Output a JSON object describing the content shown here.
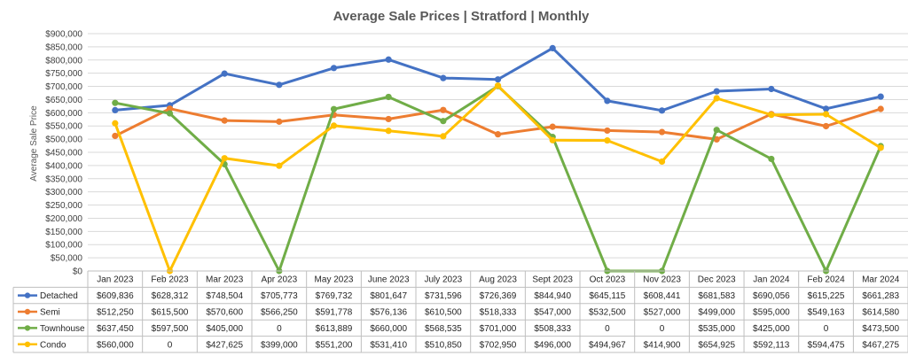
{
  "chart_data": {
    "type": "line",
    "title": "Average Sale Prices | Stratford |  Monthly",
    "ylabel": "Average Sale Price",
    "xlabel": "",
    "ylim": [
      0,
      900000
    ],
    "y_tick_labels": [
      "$0",
      "$50,000",
      "$100,000",
      "$150,000",
      "$200,000",
      "$250,000",
      "$300,000",
      "$350,000",
      "$400,000",
      "$450,000",
      "$500,000",
      "$550,000",
      "$600,000",
      "$650,000",
      "$700,000",
      "$750,000",
      "$800,000",
      "$850,000",
      "$900,000"
    ],
    "grid": true,
    "legend": "data-table",
    "categories": [
      "Jan 2023",
      "Feb 2023",
      "Mar 2023",
      "Apr 2023",
      "May 2023",
      "June 2023",
      "July 2023",
      "Aug 2023",
      "Sept 2023",
      "Oct 2023",
      "Nov 2023",
      "Dec 2023",
      "Jan 2024",
      "Feb 2024",
      "Mar 2024"
    ],
    "series": [
      {
        "name": "Detached",
        "color": "#4472c4",
        "values": [
          609836,
          628312,
          748504,
          705773,
          769732,
          801647,
          731596,
          726369,
          844940,
          645115,
          608441,
          681583,
          690056,
          615225,
          661283
        ],
        "labels": [
          "$609,836",
          "$628,312",
          "$748,504",
          "$705,773",
          "$769,732",
          "$801,647",
          "$731,596",
          "$726,369",
          "$844,940",
          "$645,115",
          "$608,441",
          "$681,583",
          "$690,056",
          "$615,225",
          "$661,283"
        ]
      },
      {
        "name": "Semi",
        "color": "#ed7d31",
        "values": [
          512250,
          615500,
          570600,
          566250,
          591778,
          576136,
          610500,
          518333,
          547000,
          532500,
          527000,
          499000,
          595000,
          549163,
          614580
        ],
        "labels": [
          "$512,250",
          "$615,500",
          "$570,600",
          "$566,250",
          "$591,778",
          "$576,136",
          "$610,500",
          "$518,333",
          "$547,000",
          "$532,500",
          "$527,000",
          "$499,000",
          "$595,000",
          "$549,163",
          "$614,580"
        ]
      },
      {
        "name": "Townhouse",
        "color": "#70ad47",
        "values": [
          637450,
          597500,
          405000,
          0,
          613889,
          660000,
          568535,
          701000,
          508333,
          0,
          0,
          535000,
          425000,
          0,
          473500
        ],
        "labels": [
          "$637,450",
          "$597,500",
          "$405,000",
          "0",
          "$613,889",
          "$660,000",
          "$568,535",
          "$701,000",
          "$508,333",
          "0",
          "0",
          "$535,000",
          "$425,000",
          "0",
          "$473,500"
        ]
      },
      {
        "name": "Condo",
        "color": "#ffc000",
        "values": [
          560000,
          0,
          427625,
          399000,
          551200,
          531410,
          510850,
          702950,
          496000,
          494967,
          414900,
          654925,
          592113,
          594475,
          467275
        ],
        "labels": [
          "$560,000",
          "0",
          "$427,625",
          "$399,000",
          "$551,200",
          "$531,410",
          "$510,850",
          "$702,950",
          "$496,000",
          "$494,967",
          "$414,900",
          "$654,925",
          "$592,113",
          "$594,475",
          "$467,275"
        ]
      }
    ]
  }
}
